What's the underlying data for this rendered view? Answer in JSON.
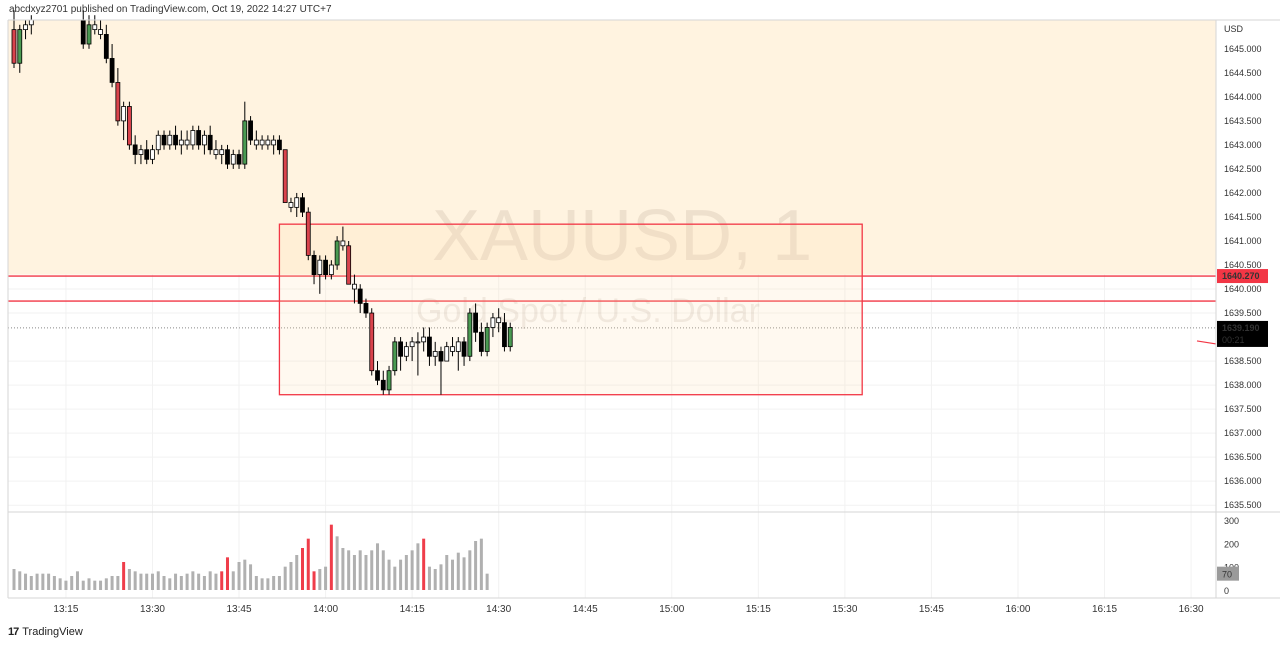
{
  "header": {
    "text": "abcdxyz2701 published on TradingView.com, Oct 19, 2022 14:27 UTC+7"
  },
  "footer": {
    "logo": "17",
    "brand": "TradingView"
  },
  "watermark": {
    "symbol": "XAUUSD, 1",
    "description": "Gold Spot / U.S. Dollar"
  },
  "chart_data": {
    "type": "candlestick",
    "symbol": "XAUUSD",
    "interval": "1",
    "currency": "USD",
    "price_axis": {
      "ticks": [
        "1645.000",
        "1644.500",
        "1644.000",
        "1643.500",
        "1643.000",
        "1642.500",
        "1642.000",
        "1641.500",
        "1641.000",
        "1640.500",
        "1640.000",
        "1639.500",
        "1638.500",
        "1638.000",
        "1637.500",
        "1637.000",
        "1636.500",
        "1636.000",
        "1635.500"
      ],
      "range": [
        1635.4,
        1645.6
      ]
    },
    "time_axis": {
      "ticks": [
        "13:15",
        "13:30",
        "13:45",
        "14:00",
        "14:15",
        "14:30",
        "14:45",
        "15:00",
        "15:15",
        "15:30",
        "15:45",
        "16:00",
        "16:15",
        "16:30"
      ]
    },
    "price_labels": [
      {
        "text": "1640.270",
        "value": 1640.27,
        "color": "#f23645"
      },
      {
        "text": "1639.190",
        "subtext": "00:21",
        "value": 1639.19,
        "color": "#000000"
      }
    ],
    "horizontal_lines": [
      {
        "value": 1640.27,
        "color": "#f23645"
      },
      {
        "value": 1639.75,
        "color": "#f23645"
      }
    ],
    "dotted_line": {
      "value": 1639.19
    },
    "zone": {
      "from": 1640.3,
      "to": 1645.6,
      "color": "#fff3e0"
    },
    "rectangle": {
      "time_from": "13:52",
      "time_to": "15:33",
      "price_from": 1637.8,
      "price_to": 1641.35,
      "color": "#f23645"
    },
    "candles": [
      {
        "t": "13:06",
        "o": 1645.4,
        "h": 1645.8,
        "l": 1644.6,
        "c": 1644.7
      },
      {
        "t": "13:07",
        "o": 1644.7,
        "h": 1645.5,
        "l": 1644.5,
        "c": 1645.4
      },
      {
        "t": "13:08",
        "o": 1645.4,
        "h": 1645.6,
        "l": 1645.2,
        "c": 1645.5
      },
      {
        "t": "13:09",
        "o": 1645.5,
        "h": 1645.7,
        "l": 1645.3,
        "c": 1645.6
      },
      {
        "t": "13:18",
        "o": 1645.6,
        "h": 1645.8,
        "l": 1645.0,
        "c": 1645.1
      },
      {
        "t": "13:19",
        "o": 1645.1,
        "h": 1645.7,
        "l": 1645.0,
        "c": 1645.5
      },
      {
        "t": "13:20",
        "o": 1645.5,
        "h": 1645.7,
        "l": 1645.3,
        "c": 1645.4
      },
      {
        "t": "13:21",
        "o": 1645.4,
        "h": 1645.6,
        "l": 1645.2,
        "c": 1645.3
      },
      {
        "t": "13:22",
        "o": 1645.3,
        "h": 1645.5,
        "l": 1644.7,
        "c": 1644.8
      },
      {
        "t": "13:23",
        "o": 1644.8,
        "h": 1645.1,
        "l": 1644.2,
        "c": 1644.3
      },
      {
        "t": "13:24",
        "o": 1644.3,
        "h": 1644.6,
        "l": 1643.4,
        "c": 1643.5
      },
      {
        "t": "13:25",
        "o": 1643.5,
        "h": 1643.9,
        "l": 1643.1,
        "c": 1643.8
      },
      {
        "t": "13:26",
        "o": 1643.8,
        "h": 1643.9,
        "l": 1642.9,
        "c": 1643.0
      },
      {
        "t": "13:27",
        "o": 1643.0,
        "h": 1643.2,
        "l": 1642.6,
        "c": 1642.8
      },
      {
        "t": "13:28",
        "o": 1642.8,
        "h": 1643.0,
        "l": 1642.6,
        "c": 1642.9
      },
      {
        "t": "13:29",
        "o": 1642.9,
        "h": 1643.1,
        "l": 1642.6,
        "c": 1642.7
      },
      {
        "t": "13:30",
        "o": 1642.7,
        "h": 1643.0,
        "l": 1642.6,
        "c": 1642.9
      },
      {
        "t": "13:31",
        "o": 1642.9,
        "h": 1643.3,
        "l": 1642.8,
        "c": 1643.2
      },
      {
        "t": "13:32",
        "o": 1643.2,
        "h": 1643.3,
        "l": 1642.9,
        "c": 1643.0
      },
      {
        "t": "13:33",
        "o": 1643.0,
        "h": 1643.3,
        "l": 1642.9,
        "c": 1643.2
      },
      {
        "t": "13:34",
        "o": 1643.2,
        "h": 1643.4,
        "l": 1642.9,
        "c": 1643.0
      },
      {
        "t": "13:35",
        "o": 1643.0,
        "h": 1643.3,
        "l": 1642.8,
        "c": 1643.1
      },
      {
        "t": "13:36",
        "o": 1643.1,
        "h": 1643.3,
        "l": 1642.9,
        "c": 1643.0
      },
      {
        "t": "13:37",
        "o": 1643.0,
        "h": 1643.4,
        "l": 1642.9,
        "c": 1643.3
      },
      {
        "t": "13:38",
        "o": 1643.3,
        "h": 1643.4,
        "l": 1642.9,
        "c": 1643.0
      },
      {
        "t": "13:39",
        "o": 1643.0,
        "h": 1643.3,
        "l": 1642.8,
        "c": 1643.2
      },
      {
        "t": "13:40",
        "o": 1643.2,
        "h": 1643.4,
        "l": 1642.8,
        "c": 1642.9
      },
      {
        "t": "13:41",
        "o": 1642.9,
        "h": 1643.1,
        "l": 1642.7,
        "c": 1642.8
      },
      {
        "t": "13:42",
        "o": 1642.8,
        "h": 1643.0,
        "l": 1642.6,
        "c": 1642.9
      },
      {
        "t": "13:43",
        "o": 1642.9,
        "h": 1643.0,
        "l": 1642.5,
        "c": 1642.6
      },
      {
        "t": "13:44",
        "o": 1642.6,
        "h": 1642.9,
        "l": 1642.5,
        "c": 1642.8
      },
      {
        "t": "13:45",
        "o": 1642.8,
        "h": 1642.9,
        "l": 1642.5,
        "c": 1642.6
      },
      {
        "t": "13:46",
        "o": 1642.6,
        "h": 1643.9,
        "l": 1642.5,
        "c": 1643.5
      },
      {
        "t": "13:47",
        "o": 1643.5,
        "h": 1643.6,
        "l": 1643.0,
        "c": 1643.1
      },
      {
        "t": "13:48",
        "o": 1643.1,
        "h": 1643.3,
        "l": 1642.9,
        "c": 1643.0
      },
      {
        "t": "13:49",
        "o": 1643.0,
        "h": 1643.2,
        "l": 1642.9,
        "c": 1643.1
      },
      {
        "t": "13:50",
        "o": 1643.1,
        "h": 1643.2,
        "l": 1642.9,
        "c": 1643.0
      },
      {
        "t": "13:51",
        "o": 1643.0,
        "h": 1643.2,
        "l": 1642.8,
        "c": 1643.1
      },
      {
        "t": "13:52",
        "o": 1643.1,
        "h": 1643.2,
        "l": 1642.8,
        "c": 1642.9
      },
      {
        "t": "13:53",
        "o": 1642.9,
        "h": 1642.9,
        "l": 1641.8,
        "c": 1641.8
      },
      {
        "t": "13:54",
        "o": 1641.8,
        "h": 1641.9,
        "l": 1641.6,
        "c": 1641.7
      },
      {
        "t": "13:55",
        "o": 1641.7,
        "h": 1642.0,
        "l": 1641.5,
        "c": 1641.9
      },
      {
        "t": "13:56",
        "o": 1641.9,
        "h": 1642.0,
        "l": 1641.5,
        "c": 1641.6
      },
      {
        "t": "13:57",
        "o": 1641.6,
        "h": 1641.7,
        "l": 1640.6,
        "c": 1640.7
      },
      {
        "t": "13:58",
        "o": 1640.7,
        "h": 1640.8,
        "l": 1640.1,
        "c": 1640.3
      },
      {
        "t": "13:59",
        "o": 1640.3,
        "h": 1640.7,
        "l": 1639.9,
        "c": 1640.6
      },
      {
        "t": "14:00",
        "o": 1640.6,
        "h": 1640.7,
        "l": 1640.2,
        "c": 1640.3
      },
      {
        "t": "14:01",
        "o": 1640.3,
        "h": 1640.6,
        "l": 1640.2,
        "c": 1640.5
      },
      {
        "t": "14:02",
        "o": 1640.5,
        "h": 1641.1,
        "l": 1640.4,
        "c": 1641.0
      },
      {
        "t": "14:03",
        "o": 1641.0,
        "h": 1641.3,
        "l": 1640.8,
        "c": 1640.9
      },
      {
        "t": "14:04",
        "o": 1640.9,
        "h": 1641.0,
        "l": 1640.1,
        "c": 1640.1
      },
      {
        "t": "14:05",
        "o": 1640.1,
        "h": 1640.3,
        "l": 1639.7,
        "c": 1640.0
      },
      {
        "t": "14:06",
        "o": 1640.0,
        "h": 1640.1,
        "l": 1639.5,
        "c": 1639.7
      },
      {
        "t": "14:07",
        "o": 1639.7,
        "h": 1639.8,
        "l": 1639.4,
        "c": 1639.5
      },
      {
        "t": "14:08",
        "o": 1639.5,
        "h": 1639.6,
        "l": 1638.2,
        "c": 1638.3
      },
      {
        "t": "14:09",
        "o": 1638.3,
        "h": 1638.5,
        "l": 1638.0,
        "c": 1638.1
      },
      {
        "t": "14:10",
        "o": 1638.1,
        "h": 1638.3,
        "l": 1637.8,
        "c": 1637.9
      },
      {
        "t": "14:11",
        "o": 1637.9,
        "h": 1638.4,
        "l": 1637.8,
        "c": 1638.3
      },
      {
        "t": "14:12",
        "o": 1638.3,
        "h": 1639.0,
        "l": 1638.2,
        "c": 1638.9
      },
      {
        "t": "14:13",
        "o": 1638.9,
        "h": 1639.0,
        "l": 1638.3,
        "c": 1638.6
      },
      {
        "t": "14:14",
        "o": 1638.6,
        "h": 1638.9,
        "l": 1638.5,
        "c": 1638.8
      },
      {
        "t": "14:15",
        "o": 1638.8,
        "h": 1639.0,
        "l": 1638.5,
        "c": 1638.9
      },
      {
        "t": "14:16",
        "o": 1638.9,
        "h": 1639.1,
        "l": 1638.2,
        "c": 1638.9
      },
      {
        "t": "14:17",
        "o": 1638.9,
        "h": 1639.2,
        "l": 1638.7,
        "c": 1639.0
      },
      {
        "t": "14:18",
        "o": 1639.0,
        "h": 1639.2,
        "l": 1638.4,
        "c": 1638.6
      },
      {
        "t": "14:19",
        "o": 1638.6,
        "h": 1638.9,
        "l": 1638.4,
        "c": 1638.7
      },
      {
        "t": "14:20",
        "o": 1638.7,
        "h": 1638.8,
        "l": 1637.8,
        "c": 1638.5
      },
      {
        "t": "14:21",
        "o": 1638.5,
        "h": 1638.9,
        "l": 1638.5,
        "c": 1638.8
      },
      {
        "t": "14:22",
        "o": 1638.8,
        "h": 1639.0,
        "l": 1638.6,
        "c": 1638.7
      },
      {
        "t": "14:23",
        "o": 1638.7,
        "h": 1639.0,
        "l": 1638.3,
        "c": 1638.9
      },
      {
        "t": "14:24",
        "o": 1638.9,
        "h": 1639.0,
        "l": 1638.4,
        "c": 1638.6
      },
      {
        "t": "14:25",
        "o": 1638.6,
        "h": 1639.6,
        "l": 1638.5,
        "c": 1639.5
      },
      {
        "t": "14:26",
        "o": 1639.5,
        "h": 1639.7,
        "l": 1638.9,
        "c": 1639.1
      },
      {
        "t": "14:27",
        "o": 1639.1,
        "h": 1639.3,
        "l": 1638.6,
        "c": 1638.7
      },
      {
        "t": "14:28",
        "o": 1638.7,
        "h": 1639.3,
        "l": 1638.6,
        "c": 1639.2
      },
      {
        "t": "14:29",
        "o": 1639.2,
        "h": 1639.5,
        "l": 1639.0,
        "c": 1639.4
      },
      {
        "t": "14:30",
        "o": 1639.4,
        "h": 1639.6,
        "l": 1639.1,
        "c": 1639.3
      },
      {
        "t": "14:31",
        "o": 1639.3,
        "h": 1639.5,
        "l": 1638.7,
        "c": 1638.8
      },
      {
        "t": "14:32",
        "o": 1638.8,
        "h": 1639.3,
        "l": 1638.7,
        "c": 1639.2
      }
    ],
    "volume_axis": {
      "ticks": [
        "300",
        "200",
        "100",
        "0"
      ],
      "range": [
        0,
        300
      ],
      "current_label": "70"
    },
    "volume": [
      {
        "t": "13:06",
        "v": 90
      },
      {
        "t": "13:07",
        "v": 80
      },
      {
        "t": "13:08",
        "v": 70
      },
      {
        "t": "13:09",
        "v": 60
      },
      {
        "t": "13:10",
        "v": 70
      },
      {
        "t": "13:11",
        "v": 70
      },
      {
        "t": "13:12",
        "v": 70
      },
      {
        "t": "13:13",
        "v": 60
      },
      {
        "t": "13:14",
        "v": 50
      },
      {
        "t": "13:15",
        "v": 40
      },
      {
        "t": "13:16",
        "v": 60
      },
      {
        "t": "13:17",
        "v": 80
      },
      {
        "t": "13:18",
        "v": 40
      },
      {
        "t": "13:19",
        "v": 50
      },
      {
        "t": "13:20",
        "v": 40
      },
      {
        "t": "13:21",
        "v": 40
      },
      {
        "t": "13:22",
        "v": 50
      },
      {
        "t": "13:23",
        "v": 60
      },
      {
        "t": "13:24",
        "v": 60
      },
      {
        "t": "13:25",
        "v": 120,
        "down": true
      },
      {
        "t": "13:26",
        "v": 90
      },
      {
        "t": "13:27",
        "v": 80
      },
      {
        "t": "13:28",
        "v": 70
      },
      {
        "t": "13:29",
        "v": 70
      },
      {
        "t": "13:30",
        "v": 70
      },
      {
        "t": "13:31",
        "v": 80
      },
      {
        "t": "13:32",
        "v": 60
      },
      {
        "t": "13:33",
        "v": 50
      },
      {
        "t": "13:34",
        "v": 70
      },
      {
        "t": "13:35",
        "v": 60
      },
      {
        "t": "13:36",
        "v": 70
      },
      {
        "t": "13:37",
        "v": 80
      },
      {
        "t": "13:38",
        "v": 70
      },
      {
        "t": "13:39",
        "v": 60
      },
      {
        "t": "13:40",
        "v": 80
      },
      {
        "t": "13:41",
        "v": 70
      },
      {
        "t": "13:42",
        "v": 80,
        "down": true
      },
      {
        "t": "13:43",
        "v": 140,
        "down": true
      },
      {
        "t": "13:44",
        "v": 80
      },
      {
        "t": "13:45",
        "v": 120
      },
      {
        "t": "13:46",
        "v": 130
      },
      {
        "t": "13:47",
        "v": 110
      },
      {
        "t": "13:48",
        "v": 60
      },
      {
        "t": "13:49",
        "v": 50
      },
      {
        "t": "13:50",
        "v": 50
      },
      {
        "t": "13:51",
        "v": 60
      },
      {
        "t": "13:52",
        "v": 60
      },
      {
        "t": "13:53",
        "v": 100
      },
      {
        "t": "13:54",
        "v": 120
      },
      {
        "t": "13:55",
        "v": 150
      },
      {
        "t": "13:56",
        "v": 180,
        "down": true
      },
      {
        "t": "13:57",
        "v": 220,
        "down": true
      },
      {
        "t": "13:58",
        "v": 80,
        "down": true
      },
      {
        "t": "13:59",
        "v": 90
      },
      {
        "t": "14:00",
        "v": 100
      },
      {
        "t": "14:01",
        "v": 280,
        "down": true
      },
      {
        "t": "14:02",
        "v": 230
      },
      {
        "t": "14:03",
        "v": 180
      },
      {
        "t": "14:04",
        "v": 170
      },
      {
        "t": "14:05",
        "v": 150
      },
      {
        "t": "14:06",
        "v": 170
      },
      {
        "t": "14:07",
        "v": 150
      },
      {
        "t": "14:08",
        "v": 170
      },
      {
        "t": "14:09",
        "v": 200
      },
      {
        "t": "14:10",
        "v": 170
      },
      {
        "t": "14:11",
        "v": 130
      },
      {
        "t": "14:12",
        "v": 100
      },
      {
        "t": "14:13",
        "v": 130
      },
      {
        "t": "14:14",
        "v": 150
      },
      {
        "t": "14:15",
        "v": 170
      },
      {
        "t": "14:16",
        "v": 200
      },
      {
        "t": "14:17",
        "v": 220,
        "down": true
      },
      {
        "t": "14:18",
        "v": 100
      },
      {
        "t": "14:19",
        "v": 90
      },
      {
        "t": "14:20",
        "v": 110
      },
      {
        "t": "14:21",
        "v": 150
      },
      {
        "t": "14:22",
        "v": 130
      },
      {
        "t": "14:23",
        "v": 160
      },
      {
        "t": "14:24",
        "v": 140
      },
      {
        "t": "14:25",
        "v": 170
      },
      {
        "t": "14:26",
        "v": 210
      },
      {
        "t": "14:27",
        "v": 220
      },
      {
        "t": "14:28",
        "v": 70
      }
    ]
  },
  "colors": {
    "up": "#4a9a52",
    "down": "#d9434c",
    "neutral": "#ffffff",
    "wick": "#000000",
    "rect": "#f23645",
    "zone": "#fff3e0",
    "volume": "#b0b0b0",
    "volume_down": "#ef3d4a"
  }
}
